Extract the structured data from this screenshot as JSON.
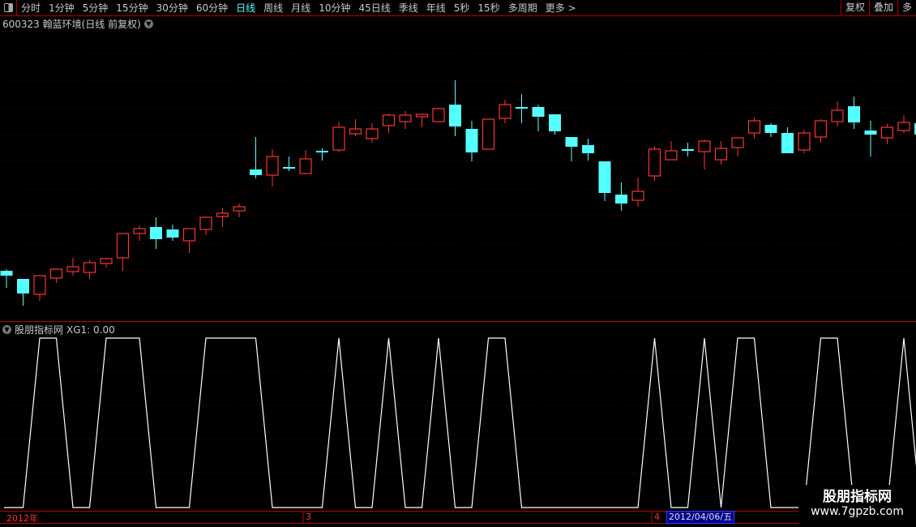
{
  "toolbar": {
    "periods": [
      "分时",
      "1分钟",
      "5分钟",
      "15分钟",
      "30分钟",
      "60分钟",
      "日线",
      "周线",
      "月线",
      "10分钟",
      "45日线",
      "季线",
      "年线",
      "5秒",
      "15秒",
      "多周期",
      "更多 >"
    ],
    "active_period": "日线",
    "right_tabs": [
      "复权",
      "叠加",
      "多"
    ]
  },
  "header": {
    "title": "600323 翰蓝环境(日线 前复权)"
  },
  "indicator": {
    "title": "股朋指标网",
    "readout": "XG1: 0.00"
  },
  "date_axis": {
    "labels": [
      "2012年",
      "3",
      "4"
    ],
    "current_date": "2012/04/06/五"
  },
  "watermark": {
    "name": "股朋指标网",
    "url": "www.7gpzb.com"
  },
  "colors": {
    "up": "#ff3232",
    "down": "#54ffff",
    "grid": "#7a0000",
    "line": "#ffffff",
    "background": "#000000"
  },
  "chart_data": [
    {
      "type": "candlestick",
      "title": "600323 翰蓝环境(日线 前复权)",
      "price_scale_note": "no price axis shown; relative price units",
      "candles": [
        [
          6.6,
          6.8,
          4.5,
          6.0
        ],
        [
          5.6,
          5.6,
          2.3,
          3.8
        ],
        [
          3.7,
          6.0,
          2.9,
          6.0
        ],
        [
          5.7,
          6.8,
          5.1,
          6.8
        ],
        [
          6.5,
          8.2,
          6.0,
          7.1
        ],
        [
          6.4,
          7.9,
          5.6,
          7.6
        ],
        [
          7.5,
          8.2,
          7.0,
          8.1
        ],
        [
          8.2,
          11.2,
          6.6,
          11.2
        ],
        [
          11.2,
          12.2,
          10.3,
          11.8
        ],
        [
          12.0,
          13.2,
          9.3,
          10.5
        ],
        [
          11.7,
          12.3,
          10.3,
          10.7
        ],
        [
          10.3,
          11.8,
          8.8,
          11.8
        ],
        [
          11.7,
          13.2,
          11.0,
          13.2
        ],
        [
          13.3,
          14.3,
          12.0,
          13.7
        ],
        [
          14.0,
          14.9,
          13.2,
          14.5
        ],
        [
          19.1,
          23.1,
          18.0,
          18.4
        ],
        [
          18.4,
          21.6,
          17.0,
          20.7
        ],
        [
          19.4,
          20.7,
          18.9,
          19.2
        ],
        [
          18.6,
          21.5,
          18.6,
          20.4
        ],
        [
          21.4,
          21.7,
          20.2,
          21.2
        ],
        [
          21.5,
          25.0,
          21.2,
          24.3
        ],
        [
          23.5,
          25.3,
          23.2,
          24.1
        ],
        [
          22.9,
          24.8,
          22.4,
          24.1
        ],
        [
          24.5,
          26.0,
          23.6,
          25.8
        ],
        [
          25.0,
          26.3,
          24.1,
          25.8
        ],
        [
          25.6,
          26.0,
          24.3,
          25.9
        ],
        [
          25.0,
          26.7,
          24.9,
          26.6
        ],
        [
          27.1,
          30.1,
          23.2,
          24.4
        ],
        [
          24.1,
          25.1,
          20.1,
          21.2
        ],
        [
          21.6,
          25.3,
          21.6,
          25.3
        ],
        [
          25.4,
          27.7,
          24.8,
          27.1
        ],
        [
          26.8,
          28.4,
          24.8,
          26.7
        ],
        [
          26.8,
          27.1,
          23.8,
          25.6
        ],
        [
          25.9,
          25.9,
          23.4,
          23.8
        ],
        [
          23.1,
          23.1,
          20.1,
          21.9
        ],
        [
          22.1,
          22.9,
          20.2,
          21.1
        ],
        [
          20.1,
          20.1,
          15.2,
          16.2
        ],
        [
          16.0,
          17.5,
          14.0,
          14.9
        ],
        [
          15.3,
          18.1,
          14.5,
          16.4
        ],
        [
          18.3,
          22.0,
          17.7,
          21.6
        ],
        [
          20.3,
          22.6,
          20.3,
          21.4
        ],
        [
          21.6,
          22.4,
          20.7,
          21.4
        ],
        [
          21.3,
          22.8,
          19.1,
          22.6
        ],
        [
          20.3,
          22.6,
          19.7,
          21.7
        ],
        [
          21.8,
          23.0,
          20.7,
          23.0
        ],
        [
          23.6,
          25.5,
          22.9,
          25.1
        ],
        [
          24.6,
          24.8,
          23.1,
          23.6
        ],
        [
          23.6,
          24.3,
          21.1,
          21.1
        ],
        [
          21.5,
          24.0,
          21.1,
          23.6
        ],
        [
          23.1,
          25.3,
          22.4,
          25.1
        ],
        [
          25.0,
          27.5,
          24.4,
          26.4
        ],
        [
          26.9,
          28.1,
          24.1,
          24.9
        ],
        [
          23.9,
          25.1,
          20.7,
          23.4
        ],
        [
          23.0,
          24.7,
          22.2,
          24.3
        ],
        [
          23.9,
          25.8,
          23.6,
          24.9
        ],
        [
          24.8,
          24.8,
          23.4,
          23.4
        ]
      ],
      "candle_format": [
        "open",
        "high",
        "low",
        "close"
      ]
    },
    {
      "type": "line",
      "series": [
        {
          "name": "XG1",
          "values": [
            0,
            0,
            1,
            1,
            0,
            0,
            1,
            1,
            1,
            0,
            0,
            0,
            1,
            1,
            1,
            1,
            0,
            0,
            0,
            0,
            1,
            0,
            0,
            1,
            0,
            0,
            1,
            0,
            0,
            1,
            1,
            0,
            0,
            0,
            0,
            0,
            0,
            0,
            0,
            1,
            0,
            0,
            1,
            0,
            1,
            1,
            0,
            0,
            0,
            1,
            1,
            0,
            0,
            0,
            1,
            0
          ]
        }
      ],
      "ylim": [
        0,
        1
      ]
    }
  ]
}
